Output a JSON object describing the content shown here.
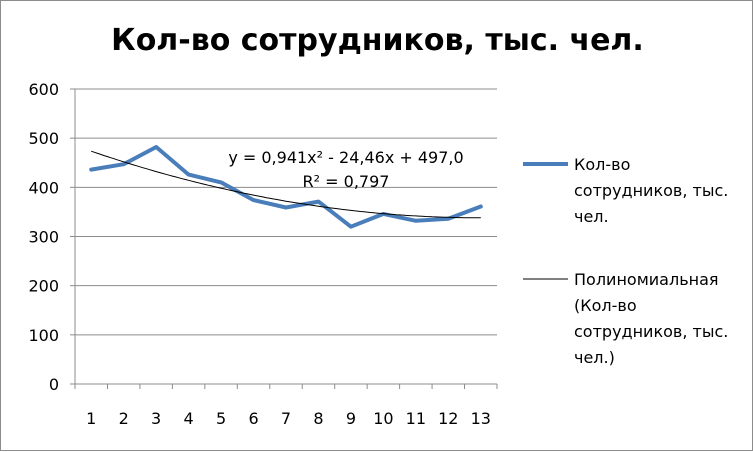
{
  "chart_data": {
    "type": "line",
    "title": "Кол-во сотрудников, тыс. чел.",
    "xlabel": "",
    "ylabel": "",
    "categories": [
      "1",
      "2",
      "3",
      "4",
      "5",
      "6",
      "7",
      "8",
      "9",
      "10",
      "11",
      "12",
      "13"
    ],
    "ylim": [
      0,
      600
    ],
    "yticks": [
      "0",
      "100",
      "200",
      "300",
      "400",
      "500",
      "600"
    ],
    "grid": "horizontal",
    "legend_position": "right",
    "series": [
      {
        "name": "Кол-во сотрудников, тыс. чел.",
        "legend_lines": [
          "Кол-во",
          "сотрудников, тыс.",
          "чел."
        ],
        "color": "#4a7ebb",
        "values": [
          436,
          447,
          482,
          426,
          410,
          374,
          359,
          371,
          320,
          346,
          332,
          336,
          361
        ]
      },
      {
        "name": "Полиномиальная (Кол-во сотрудников, тыс. чел.)",
        "legend_lines": [
          "Полиномиальная",
          "(Кол-во",
          "сотрудников, тыс.",
          "чел.)"
        ],
        "color": "#000000",
        "type": "trendline-polynomial",
        "coefficients": [
          0.941,
          -24.46,
          497.0
        ]
      }
    ],
    "annotations": {
      "equation": "y = 0,941x² - 24,46x + 497,0",
      "r_squared": "R² = 0,797"
    }
  }
}
